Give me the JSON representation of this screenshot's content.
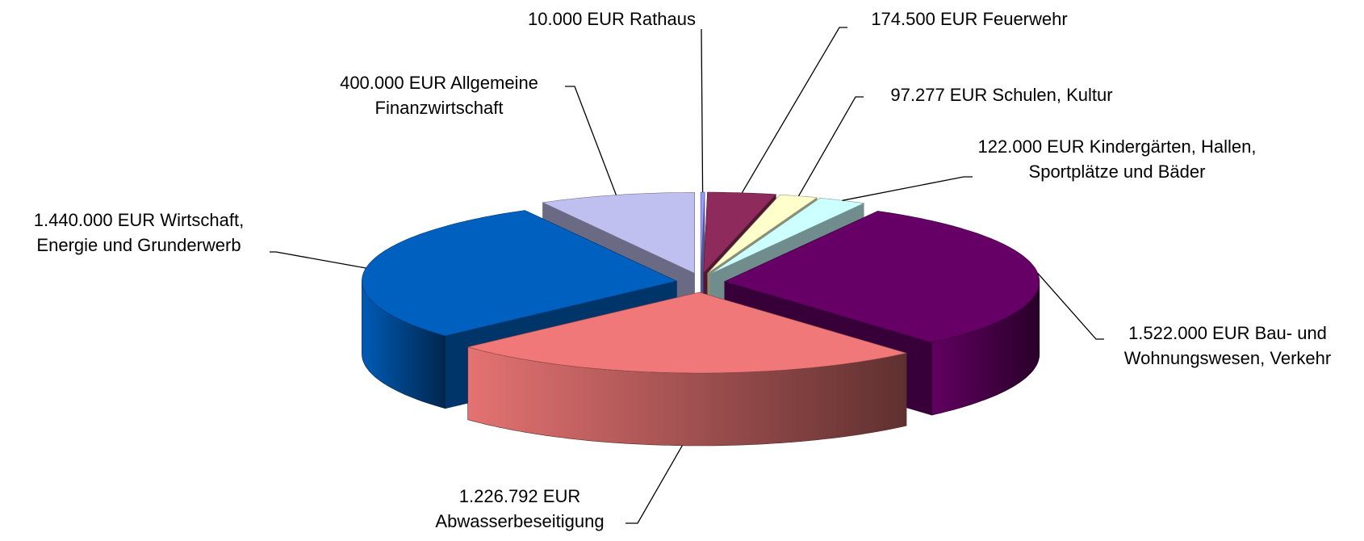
{
  "chart_data": {
    "type": "pie",
    "categories": [
      "Rathaus",
      "Feuerwehr",
      "Schulen, Kultur",
      "Kindergärten, Hallen, Sportplätze und Bäder",
      "Bau- und Wohnungswesen, Verkehr",
      "Abwasserbeseitigung",
      "Wirtschaft, Energie und Grunderwerb",
      "Allgemeine Finanzwirtschaft"
    ],
    "values": [
      10000,
      174500,
      97277,
      122000,
      1522000,
      1226792,
      1440000,
      400000
    ],
    "value_labels": [
      "10.000 EUR",
      "174.500 EUR",
      "97.277 EUR",
      "122.000 EUR",
      "1.522.000 EUR",
      "1.226.792 EUR",
      "1.440.000 EUR",
      "400.000 EUR"
    ],
    "colors": [
      "#9999ff",
      "#8e2b5c",
      "#ffffcc",
      "#ccffff",
      "#660066",
      "#f07878",
      "#0060c0",
      "#c0c0f0"
    ]
  }
}
